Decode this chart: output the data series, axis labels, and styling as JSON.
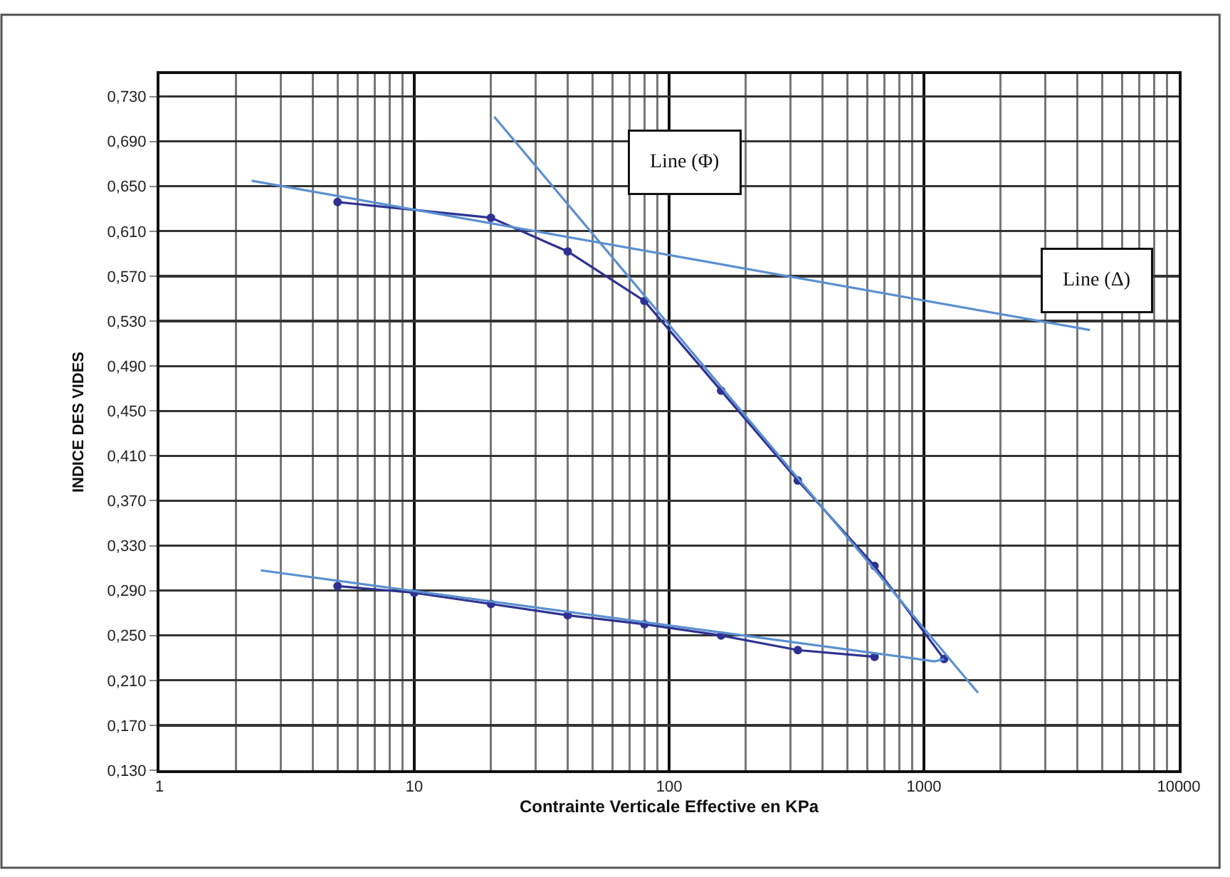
{
  "chart_data": {
    "type": "line",
    "xlabel": "Contrainte Verticale Effective en KPa",
    "ylabel": "INDICE DES VIDES",
    "log": "x",
    "grid": true,
    "marker": "circle",
    "line_style": "solid",
    "xlim": [
      1,
      10000
    ],
    "xticks": [
      1,
      10,
      100,
      1000,
      10000
    ],
    "ylim": [
      0.13,
      0.75
    ],
    "yticks": [
      {
        "value": 0.13,
        "label": "0,130"
      },
      {
        "value": 0.17,
        "label": "0,170"
      },
      {
        "value": 0.21,
        "label": "0,210"
      },
      {
        "value": 0.25,
        "label": "0,250"
      },
      {
        "value": 0.29,
        "label": "0,290"
      },
      {
        "value": 0.33,
        "label": "0,330"
      },
      {
        "value": 0.37,
        "label": "0,370"
      },
      {
        "value": 0.41,
        "label": "0,410"
      },
      {
        "value": 0.45,
        "label": "0,450"
      },
      {
        "value": 0.49,
        "label": "0,490"
      },
      {
        "value": 0.53,
        "label": "0,530"
      },
      {
        "value": 0.57,
        "label": "0,570"
      },
      {
        "value": 0.61,
        "label": "0,610"
      },
      {
        "value": 0.65,
        "label": "0,650"
      },
      {
        "value": 0.69,
        "label": "0,690"
      },
      {
        "value": 0.73,
        "label": "0,730"
      }
    ],
    "series": [
      {
        "color": "#2e3192",
        "x": [
          5,
          20,
          40,
          80,
          160,
          320,
          640,
          1200
        ],
        "values": [
          0.636,
          0.622,
          0.592,
          0.548,
          0.468,
          0.388,
          0.312,
          0.229
        ]
      },
      {
        "color": "#2e3192",
        "x": [
          640,
          320,
          160,
          80,
          40,
          20,
          10,
          5
        ],
        "values": [
          0.231,
          0.237,
          0.25,
          0.26,
          0.268,
          0.278,
          0.288,
          0.294
        ]
      },
      {
        "color": "#5b8fd0",
        "marker": "none",
        "x": [
          20.6,
          1630
        ],
        "values": [
          0.712,
          0.199
        ]
      },
      {
        "color": "#5b8fd0",
        "marker": "none",
        "x": [
          2.3,
          4480
        ],
        "values": [
          0.655,
          0.522
        ]
      },
      {
        "color": "#5b8fd0",
        "marker": "none",
        "x": [
          2.5,
          1100,
          1200
        ],
        "values": [
          0.308,
          0.227,
          0.229
        ]
      }
    ],
    "annotations": [
      "Line (Φ)",
      "Line (Δ)"
    ]
  }
}
